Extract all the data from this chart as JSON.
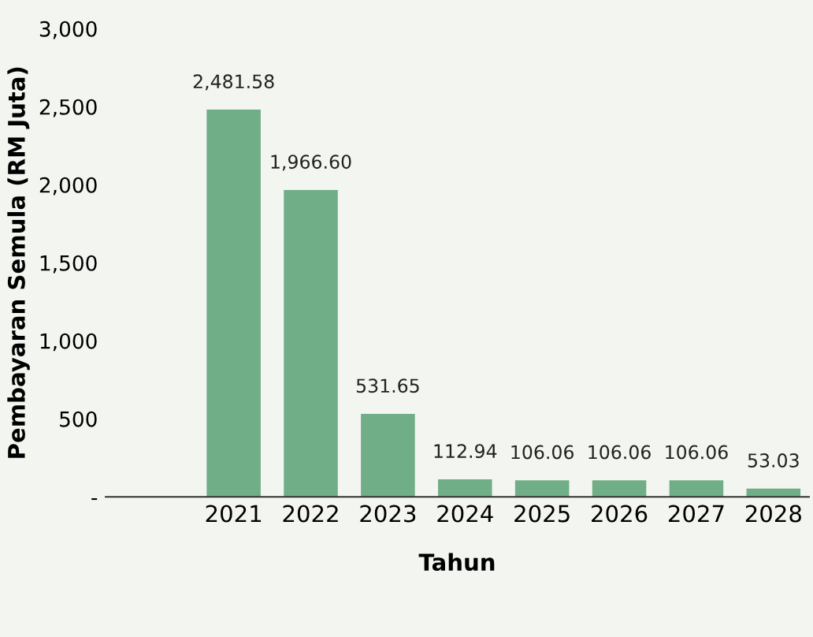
{
  "chart_data": {
    "type": "bar",
    "xlabel": "Tahun",
    "ylabel": "Pembayaran Semula (RM Juta)",
    "categories": [
      "2021",
      "2022",
      "2023",
      "2024",
      "2025",
      "2026",
      "2027",
      "2028"
    ],
    "values": [
      2481.58,
      1966.6,
      531.65,
      112.94,
      106.06,
      106.06,
      106.06,
      53.03
    ],
    "value_labels": [
      "2,481.58",
      "1,966.60",
      "531.65",
      "112.94",
      "106.06",
      "106.06",
      "106.06",
      "53.03"
    ],
    "color": "#6fae86",
    "ylim": [
      0,
      3000
    ],
    "yticks": [
      {
        "value": 0,
        "label": "-"
      },
      500,
      {
        "value": 1000,
        "label": "1,000"
      },
      {
        "value": 1500,
        "label": "1,500"
      },
      {
        "value": 2000,
        "label": "2,000"
      },
      {
        "value": 2500,
        "label": "2,500"
      },
      {
        "value": 3000,
        "label": "3,000"
      }
    ],
    "grid": false,
    "legend": false
  }
}
